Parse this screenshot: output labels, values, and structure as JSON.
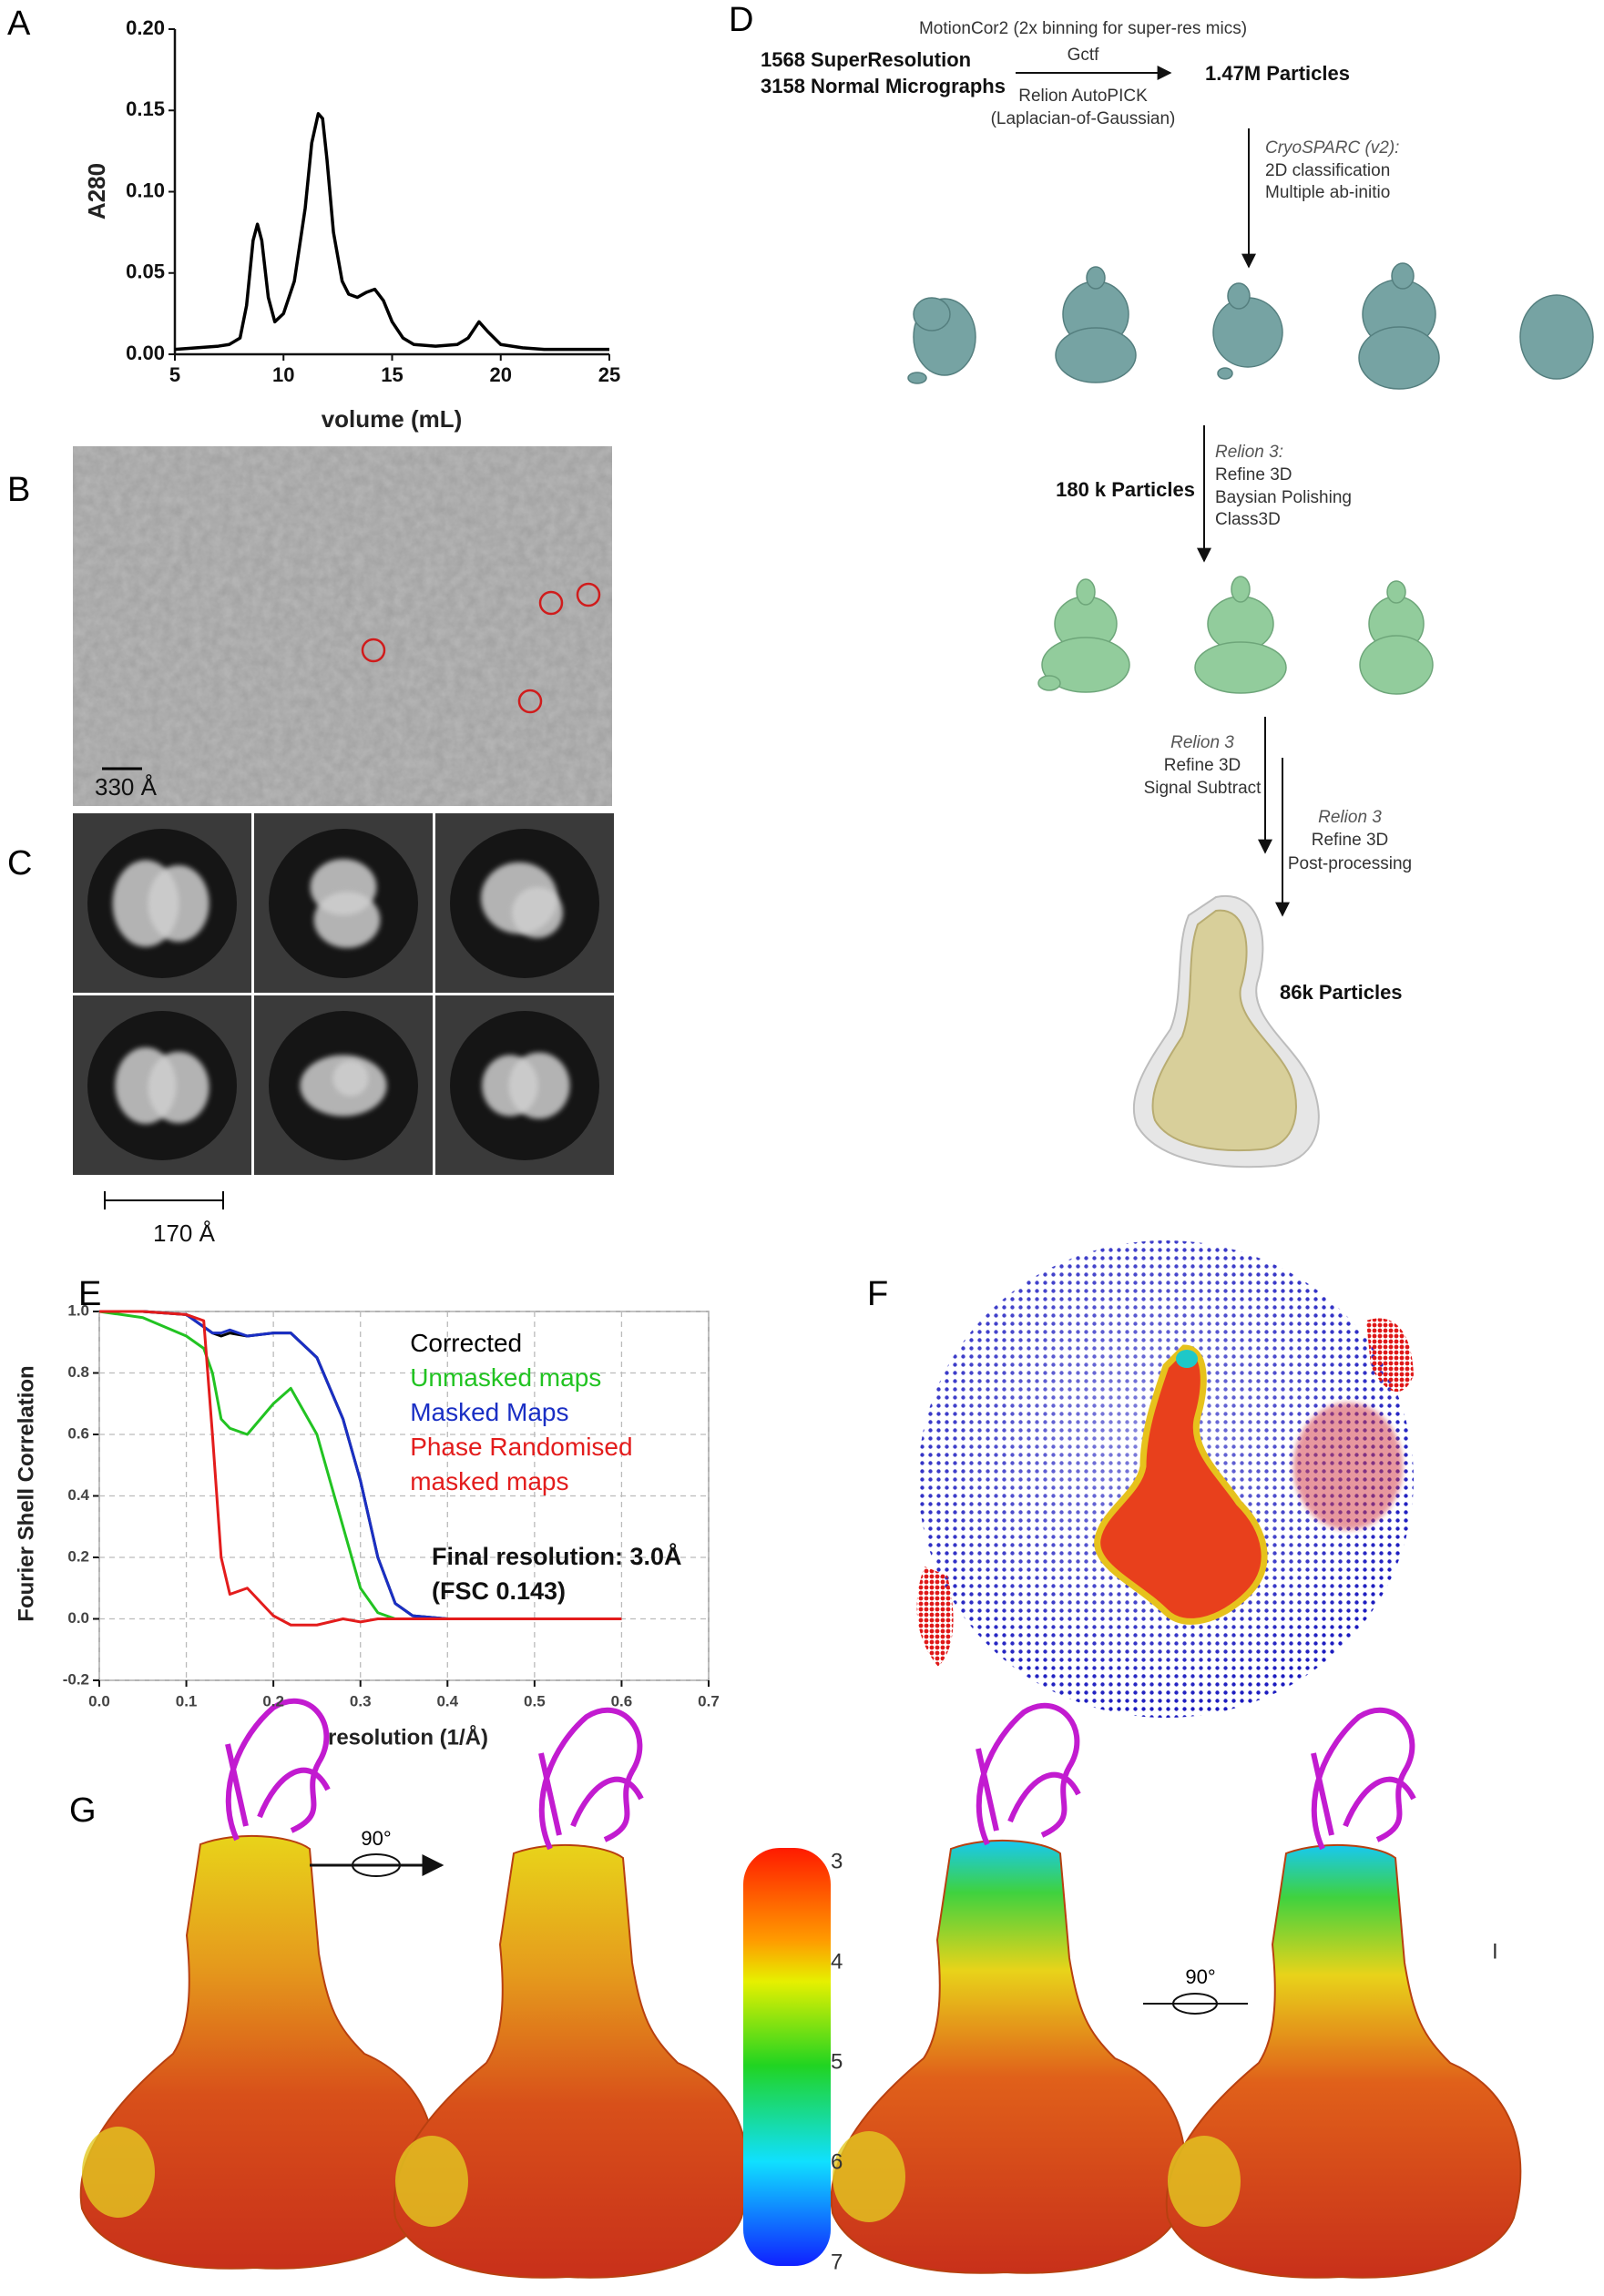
{
  "panels": [
    "A",
    "B",
    "C",
    "D",
    "E",
    "F",
    "G"
  ],
  "chart_data": [
    {
      "type": "line",
      "xlabel": "volume (mL)",
      "ylabel": "A280",
      "x": [
        5,
        6,
        7,
        7.5,
        8,
        8.3,
        8.6,
        8.8,
        9,
        9.3,
        9.6,
        10,
        10.5,
        11,
        11.3,
        11.6,
        11.8,
        12,
        12.3,
        12.7,
        13,
        13.4,
        13.8,
        14.2,
        14.6,
        15,
        15.5,
        16,
        17,
        18,
        18.5,
        19,
        19.4,
        20,
        21,
        22,
        23,
        24,
        25
      ],
      "values": [
        0.003,
        0.004,
        0.005,
        0.006,
        0.01,
        0.03,
        0.07,
        0.08,
        0.07,
        0.035,
        0.02,
        0.025,
        0.045,
        0.09,
        0.13,
        0.148,
        0.145,
        0.12,
        0.075,
        0.045,
        0.037,
        0.035,
        0.038,
        0.04,
        0.033,
        0.02,
        0.01,
        0.006,
        0.005,
        0.006,
        0.01,
        0.02,
        0.014,
        0.006,
        0.004,
        0.003,
        0.003,
        0.003,
        0.003
      ],
      "color": "#000000",
      "xlim": [
        5,
        25
      ],
      "ylim": [
        0,
        0.2
      ],
      "xticks": [
        5,
        10,
        15,
        20,
        25
      ],
      "yticks": [
        {
          "value": 0,
          "label": "0.00"
        },
        0.05,
        {
          "value": 0.1,
          "label": "0.10"
        },
        0.15,
        {
          "value": 0.2,
          "label": "0.20"
        }
      ],
      "grid": false
    },
    {
      "type": "line",
      "xlabel": "resolution (1/Å)",
      "ylabel": "Fourier Shell Correlation",
      "x": [
        0,
        0.05,
        0.1,
        0.12,
        0.13,
        0.14,
        0.15,
        0.17,
        0.2,
        0.22,
        0.25,
        0.28,
        0.3,
        0.32,
        0.34,
        0.36,
        0.4,
        0.5,
        0.6
      ],
      "series": [
        {
          "name": "Corrected",
          "color": "#000000",
          "values": [
            1,
            1,
            0.99,
            0.95,
            0.93,
            0.92,
            0.93,
            0.92,
            0.93,
            0.93,
            0.85,
            0.65,
            0.45,
            0.2,
            0.05,
            0.01,
            0,
            0,
            0
          ]
        },
        {
          "name": "Unmasked maps",
          "color": "#22c322",
          "values": [
            1,
            0.98,
            0.92,
            0.88,
            0.8,
            0.65,
            0.62,
            0.6,
            0.7,
            0.75,
            0.6,
            0.3,
            0.1,
            0.02,
            0,
            0,
            0,
            0,
            0
          ]
        },
        {
          "name": "Masked Maps",
          "color": "#1a2fc4",
          "values": [
            1,
            1,
            0.99,
            0.95,
            0.93,
            0.93,
            0.94,
            0.92,
            0.93,
            0.93,
            0.85,
            0.65,
            0.45,
            0.2,
            0.05,
            0.01,
            0,
            0,
            0
          ]
        },
        {
          "name": "Phase Randomised  masked maps",
          "color": "#e31c1c",
          "values": [
            1,
            1,
            0.99,
            0.97,
            0.6,
            0.2,
            0.08,
            0.1,
            0.01,
            -0.02,
            -0.02,
            0,
            -0.01,
            0,
            0,
            0,
            0,
            0,
            0
          ]
        }
      ],
      "xlim": [
        0,
        0.7
      ],
      "ylim": [
        -0.2,
        1.0
      ],
      "xticks": [
        {
          "value": 0,
          "label": "0.0"
        },
        0.1,
        0.2,
        0.3,
        0.4,
        0.5,
        0.6,
        0.7
      ],
      "yticks": [
        -0.2,
        {
          "value": 0,
          "label": "0.0"
        },
        0.2,
        0.4,
        0.6,
        0.8,
        {
          "value": 1,
          "label": "1.0"
        }
      ],
      "grid": true,
      "legend": "upper right",
      "annotations": [
        "Final resolution: 3.0Å",
        "(FSC 0.143)"
      ]
    }
  ],
  "micrograph": {
    "scale_bar": "330 Å"
  },
  "class_averages": {
    "scale_bar": "170 Å"
  },
  "workflow": {
    "input": [
      "1568 SuperResolution",
      "3158 Normal Micrographs"
    ],
    "step1_above": [
      "MotionCor2 (2x binning for super-res mics)",
      "Gctf"
    ],
    "step1_below": [
      "Relion AutoPICK",
      "(Laplacian-of-Gaussian)"
    ],
    "particles1": "1.47M Particles",
    "step2": [
      "CryoSPARC (v2):",
      "2D classification",
      "Multiple ab-initio"
    ],
    "particles2": "180 k Particles",
    "step3": [
      "Relion 3:",
      "Refine 3D",
      "Baysian Polishing",
      "Class3D"
    ],
    "step4": [
      "Relion 3",
      "Refine 3D",
      "Signal Subtract"
    ],
    "step5": [
      "Relion 3",
      "Refine 3D",
      "Post-processing"
    ],
    "particles3": "86k Particles"
  },
  "model": {
    "rotation_labels": [
      "90°",
      "90°"
    ],
    "colorbar_ticks": [
      3,
      4,
      5,
      6,
      7
    ],
    "mark": "I"
  }
}
